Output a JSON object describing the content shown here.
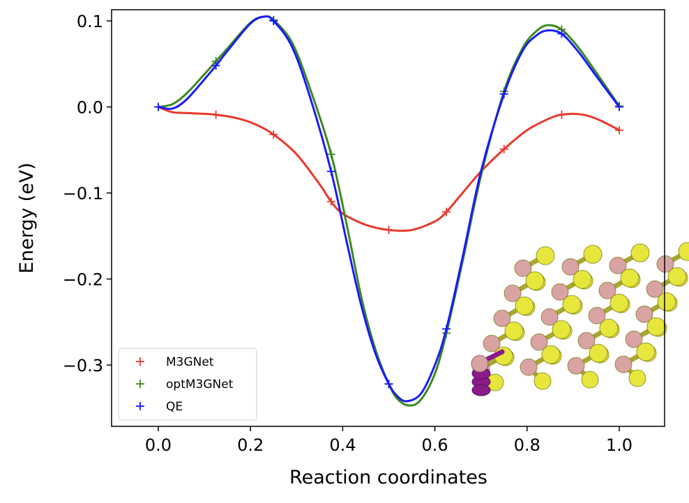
{
  "chart_data": {
    "type": "line",
    "xlabel": "Reaction coordinates",
    "ylabel": "Energy (eV)",
    "xlim": [
      -0.1,
      1.1
    ],
    "ylim": [
      -0.37,
      0.11
    ],
    "xticks": [
      0.0,
      0.2,
      0.4,
      0.6,
      0.8,
      1.0
    ],
    "xtick_labels": [
      "0.0",
      "0.2",
      "0.4",
      "0.6",
      "0.8",
      "1.0"
    ],
    "yticks": [
      0.1,
      0.0,
      -0.1,
      -0.2,
      -0.3
    ],
    "ytick_labels": [
      "0.1",
      "0.0",
      "−0.1",
      "−0.2",
      "−0.3"
    ],
    "grid": false,
    "legend_position": "lower-left",
    "marker": "+",
    "series": [
      {
        "name": "M3GNet",
        "color": "#e8392b",
        "points": [
          [
            0.0,
            0.0
          ],
          [
            0.125,
            -0.009
          ],
          [
            0.25,
            -0.032
          ],
          [
            0.375,
            -0.11
          ],
          [
            0.5,
            -0.143
          ],
          [
            0.625,
            -0.122
          ],
          [
            0.75,
            -0.049
          ],
          [
            0.875,
            -0.009
          ],
          [
            1.0,
            -0.027
          ]
        ],
        "curve": [
          [
            0.0,
            0.0
          ],
          [
            0.03,
            -0.006
          ],
          [
            0.06,
            -0.007
          ],
          [
            0.1,
            -0.008
          ],
          [
            0.125,
            -0.009
          ],
          [
            0.17,
            -0.013
          ],
          [
            0.21,
            -0.02
          ],
          [
            0.25,
            -0.032
          ],
          [
            0.3,
            -0.055
          ],
          [
            0.35,
            -0.09
          ],
          [
            0.375,
            -0.11
          ],
          [
            0.4,
            -0.124
          ],
          [
            0.45,
            -0.137
          ],
          [
            0.5,
            -0.143
          ],
          [
            0.55,
            -0.143
          ],
          [
            0.6,
            -0.133
          ],
          [
            0.625,
            -0.122
          ],
          [
            0.66,
            -0.1
          ],
          [
            0.7,
            -0.075
          ],
          [
            0.75,
            -0.049
          ],
          [
            0.8,
            -0.027
          ],
          [
            0.85,
            -0.013
          ],
          [
            0.875,
            -0.009
          ],
          [
            0.9,
            -0.008
          ],
          [
            0.93,
            -0.01
          ],
          [
            0.96,
            -0.016
          ],
          [
            1.0,
            -0.027
          ]
        ]
      },
      {
        "name": "optM3GNet",
        "color": "#3a8a1e",
        "points": [
          [
            0.0,
            0.0
          ],
          [
            0.125,
            0.053
          ],
          [
            0.25,
            0.101
          ],
          [
            0.375,
            -0.055
          ],
          [
            0.5,
            -0.322
          ],
          [
            0.625,
            -0.263
          ],
          [
            0.75,
            0.018
          ],
          [
            0.875,
            0.09
          ],
          [
            1.0,
            0.001
          ]
        ],
        "curve": [
          [
            0.0,
            0.0
          ],
          [
            0.03,
            0.003
          ],
          [
            0.06,
            0.015
          ],
          [
            0.1,
            0.038
          ],
          [
            0.125,
            0.053
          ],
          [
            0.15,
            0.068
          ],
          [
            0.2,
            0.098
          ],
          [
            0.23,
            0.105
          ],
          [
            0.25,
            0.101
          ],
          [
            0.29,
            0.075
          ],
          [
            0.33,
            0.02
          ],
          [
            0.375,
            -0.055
          ],
          [
            0.41,
            -0.14
          ],
          [
            0.44,
            -0.22
          ],
          [
            0.47,
            -0.28
          ],
          [
            0.5,
            -0.322
          ],
          [
            0.52,
            -0.34
          ],
          [
            0.545,
            -0.347
          ],
          [
            0.57,
            -0.34
          ],
          [
            0.6,
            -0.31
          ],
          [
            0.625,
            -0.263
          ],
          [
            0.66,
            -0.18
          ],
          [
            0.7,
            -0.08
          ],
          [
            0.75,
            0.018
          ],
          [
            0.79,
            0.068
          ],
          [
            0.82,
            0.088
          ],
          [
            0.845,
            0.095
          ],
          [
            0.875,
            0.09
          ],
          [
            0.91,
            0.07
          ],
          [
            0.95,
            0.04
          ],
          [
            1.0,
            0.001
          ]
        ]
      },
      {
        "name": "QE",
        "color": "#1a1aff",
        "points": [
          [
            0.0,
            0.0
          ],
          [
            0.125,
            0.048
          ],
          [
            0.25,
            0.1
          ],
          [
            0.375,
            -0.075
          ],
          [
            0.5,
            -0.322
          ],
          [
            0.625,
            -0.258
          ],
          [
            0.75,
            0.015
          ],
          [
            0.875,
            0.085
          ],
          [
            1.0,
            0.0
          ]
        ],
        "curve": [
          [
            0.0,
            0.0
          ],
          [
            0.03,
            -0.002
          ],
          [
            0.06,
            0.008
          ],
          [
            0.1,
            0.032
          ],
          [
            0.125,
            0.048
          ],
          [
            0.15,
            0.065
          ],
          [
            0.2,
            0.097
          ],
          [
            0.23,
            0.105
          ],
          [
            0.25,
            0.1
          ],
          [
            0.29,
            0.07
          ],
          [
            0.33,
            0.01
          ],
          [
            0.375,
            -0.075
          ],
          [
            0.41,
            -0.16
          ],
          [
            0.44,
            -0.23
          ],
          [
            0.47,
            -0.285
          ],
          [
            0.5,
            -0.322
          ],
          [
            0.52,
            -0.337
          ],
          [
            0.54,
            -0.342
          ],
          [
            0.57,
            -0.333
          ],
          [
            0.6,
            -0.3
          ],
          [
            0.625,
            -0.258
          ],
          [
            0.66,
            -0.175
          ],
          [
            0.7,
            -0.075
          ],
          [
            0.75,
            0.015
          ],
          [
            0.79,
            0.065
          ],
          [
            0.82,
            0.083
          ],
          [
            0.845,
            0.089
          ],
          [
            0.875,
            0.085
          ],
          [
            0.91,
            0.065
          ],
          [
            0.95,
            0.036
          ],
          [
            1.0,
            0.0
          ]
        ]
      }
    ]
  },
  "inset": {
    "description_icon": "molecule-structure-icon",
    "colors": {
      "sulfur": "#e6e63c",
      "boron": "#d9a3a3",
      "adsorbate": "#8a1a8a"
    }
  }
}
